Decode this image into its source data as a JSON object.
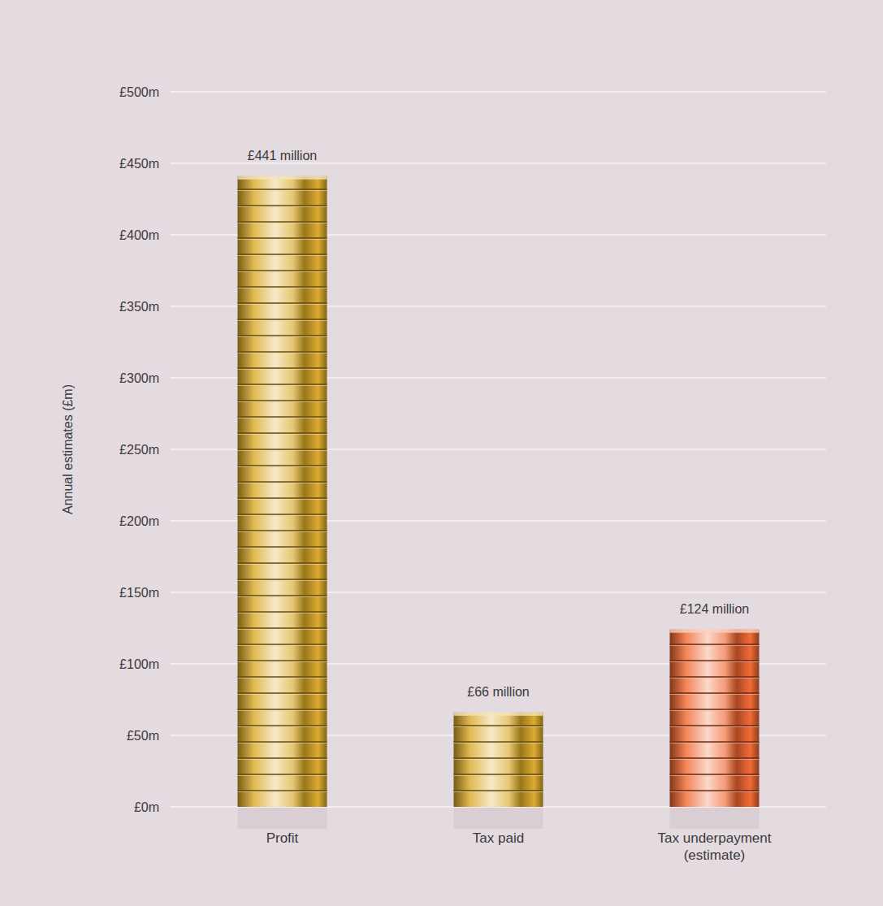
{
  "chart_data": {
    "type": "bar",
    "y_label": "Annual estimates (£m)",
    "categories": [
      "Profit",
      "Tax paid",
      "Tax underpayment (estimate)"
    ],
    "values": [
      441,
      66,
      124
    ],
    "value_labels": [
      "£441 million",
      "£66 million",
      "£124 million"
    ],
    "colors": [
      "#d9a826",
      "#d9a826",
      "#f0642e"
    ],
    "ylim": [
      0,
      500
    ],
    "yticks": [
      {
        "value": 0,
        "label": "£0m"
      },
      {
        "value": 50,
        "label": "£50m"
      },
      {
        "value": 100,
        "label": "£100m"
      },
      {
        "value": 150,
        "label": "£150m"
      },
      {
        "value": 200,
        "label": "£200m"
      },
      {
        "value": 250,
        "label": "£250m"
      },
      {
        "value": 300,
        "label": "£300m"
      },
      {
        "value": 350,
        "label": "£350m"
      },
      {
        "value": 400,
        "label": "£400m"
      },
      {
        "value": 450,
        "label": "£450m"
      },
      {
        "value": 500,
        "label": "£500m"
      }
    ],
    "grid": true,
    "data_labels": true
  }
}
